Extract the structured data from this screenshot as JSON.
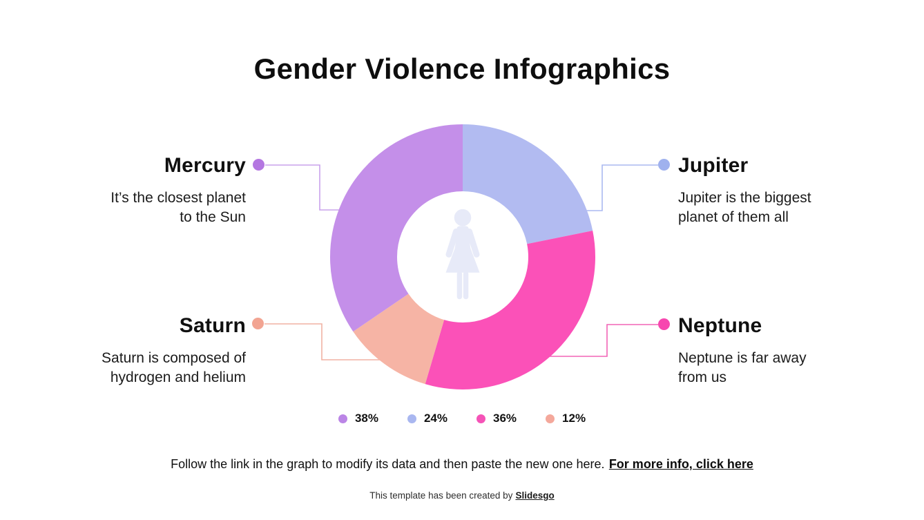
{
  "title": "Gender Violence Infographics",
  "callouts": [
    {
      "id": "mercury",
      "name": "Mercury",
      "lines": [
        "It’s the closest planet",
        "to the Sun"
      ],
      "side": "left",
      "dot_color": "#b477e1",
      "line_color": "#c9a2ec"
    },
    {
      "id": "jupiter",
      "name": "Jupiter",
      "lines": [
        "Jupiter is the biggest",
        "planet of them all"
      ],
      "side": "right",
      "dot_color": "#9fb1ee",
      "line_color": "#aab9f0"
    },
    {
      "id": "saturn",
      "name": "Saturn",
      "lines": [
        "Saturn is composed of",
        "hydrogen and helium"
      ],
      "side": "left",
      "dot_color": "#f2a492",
      "line_color": "#f0b2a3"
    },
    {
      "id": "neptune",
      "name": "Neptune",
      "lines": [
        "Neptune is far away",
        "from us"
      ],
      "side": "right",
      "dot_color": "#f747af",
      "line_color": "#f263b5"
    }
  ],
  "chart_data": {
    "type": "pie",
    "subtype": "donut",
    "start_angle_clockwise_from_top": 0,
    "slices": [
      {
        "category": "Jupiter",
        "label": "24%",
        "value": 24,
        "color": "#b2bbf1"
      },
      {
        "category": "Neptune",
        "label": "36%",
        "value": 36,
        "color": "#fb51b8"
      },
      {
        "category": "Saturn",
        "label": "12%",
        "value": 12,
        "color": "#f6b4a5"
      },
      {
        "category": "Mercury",
        "label": "38%",
        "value": 38,
        "color": "#c48fe9"
      }
    ],
    "legend": [
      {
        "label": "38%",
        "color": "#bb85e6"
      },
      {
        "label": "24%",
        "color": "#a9b7f0"
      },
      {
        "label": "36%",
        "color": "#f553b7"
      },
      {
        "label": "12%",
        "color": "#f4a89b"
      }
    ],
    "legend_position": "bottom",
    "center_icon": "woman-icon",
    "center_icon_color": "#e7eaf8"
  },
  "instruction": {
    "text": "Follow the link in the graph to modify its data and then paste the new one here.",
    "link_label": "For more info, click here"
  },
  "footer": {
    "text": "This template has been created by",
    "link_label": "Slidesgo"
  }
}
